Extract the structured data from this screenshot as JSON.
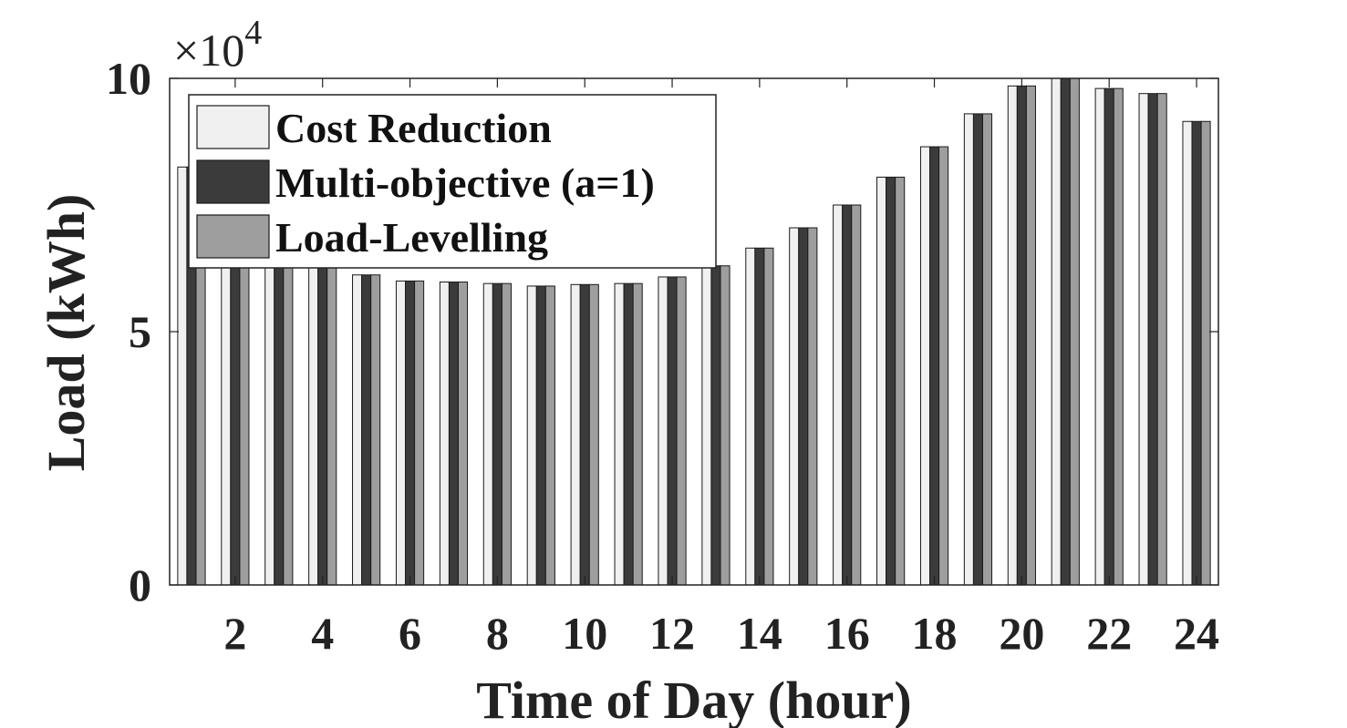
{
  "chart_data": {
    "type": "bar",
    "x": [
      1,
      2,
      3,
      4,
      5,
      6,
      7,
      8,
      9,
      10,
      11,
      12,
      13,
      14,
      15,
      16,
      17,
      18,
      19,
      20,
      21,
      22,
      23,
      24
    ],
    "xticks": [
      2,
      4,
      6,
      8,
      10,
      12,
      14,
      16,
      18,
      20,
      22,
      24
    ],
    "yticks": [
      0,
      5,
      10
    ],
    "xlim": [
      0.5,
      24.5
    ],
    "ylim": [
      0,
      10
    ],
    "y_exponent_label": "×10",
    "y_exponent_power": "4",
    "xlabel": "Time of Day (hour)",
    "ylabel": "Load (kWh)",
    "legend_position": "top-left",
    "grid": false,
    "series": [
      {
        "name": "Cost Reduction",
        "color": "#f0f0f0",
        "values": [
          8.25,
          6.45,
          6.35,
          6.35,
          6.12,
          6.0,
          5.98,
          5.95,
          5.9,
          5.93,
          5.95,
          6.08,
          6.3,
          6.65,
          7.05,
          7.5,
          8.05,
          8.65,
          9.3,
          9.85,
          10.05,
          9.8,
          9.7,
          9.15
        ]
      },
      {
        "name": "Multi-objective (a=1)",
        "color": "#3b3b3b",
        "values": [
          8.25,
          6.45,
          6.35,
          6.35,
          6.12,
          6.0,
          5.98,
          5.95,
          5.9,
          5.93,
          5.95,
          6.08,
          6.3,
          6.65,
          7.05,
          7.5,
          8.05,
          8.65,
          9.3,
          9.85,
          10.05,
          9.8,
          9.7,
          9.15
        ]
      },
      {
        "name": "Load-Levelling",
        "color": "#9e9e9e",
        "values": [
          8.25,
          6.45,
          6.35,
          6.35,
          6.12,
          6.0,
          5.98,
          5.95,
          5.9,
          5.93,
          5.95,
          6.08,
          6.3,
          6.65,
          7.05,
          7.5,
          8.05,
          8.65,
          9.3,
          9.85,
          10.05,
          9.8,
          9.7,
          9.15
        ]
      }
    ]
  }
}
